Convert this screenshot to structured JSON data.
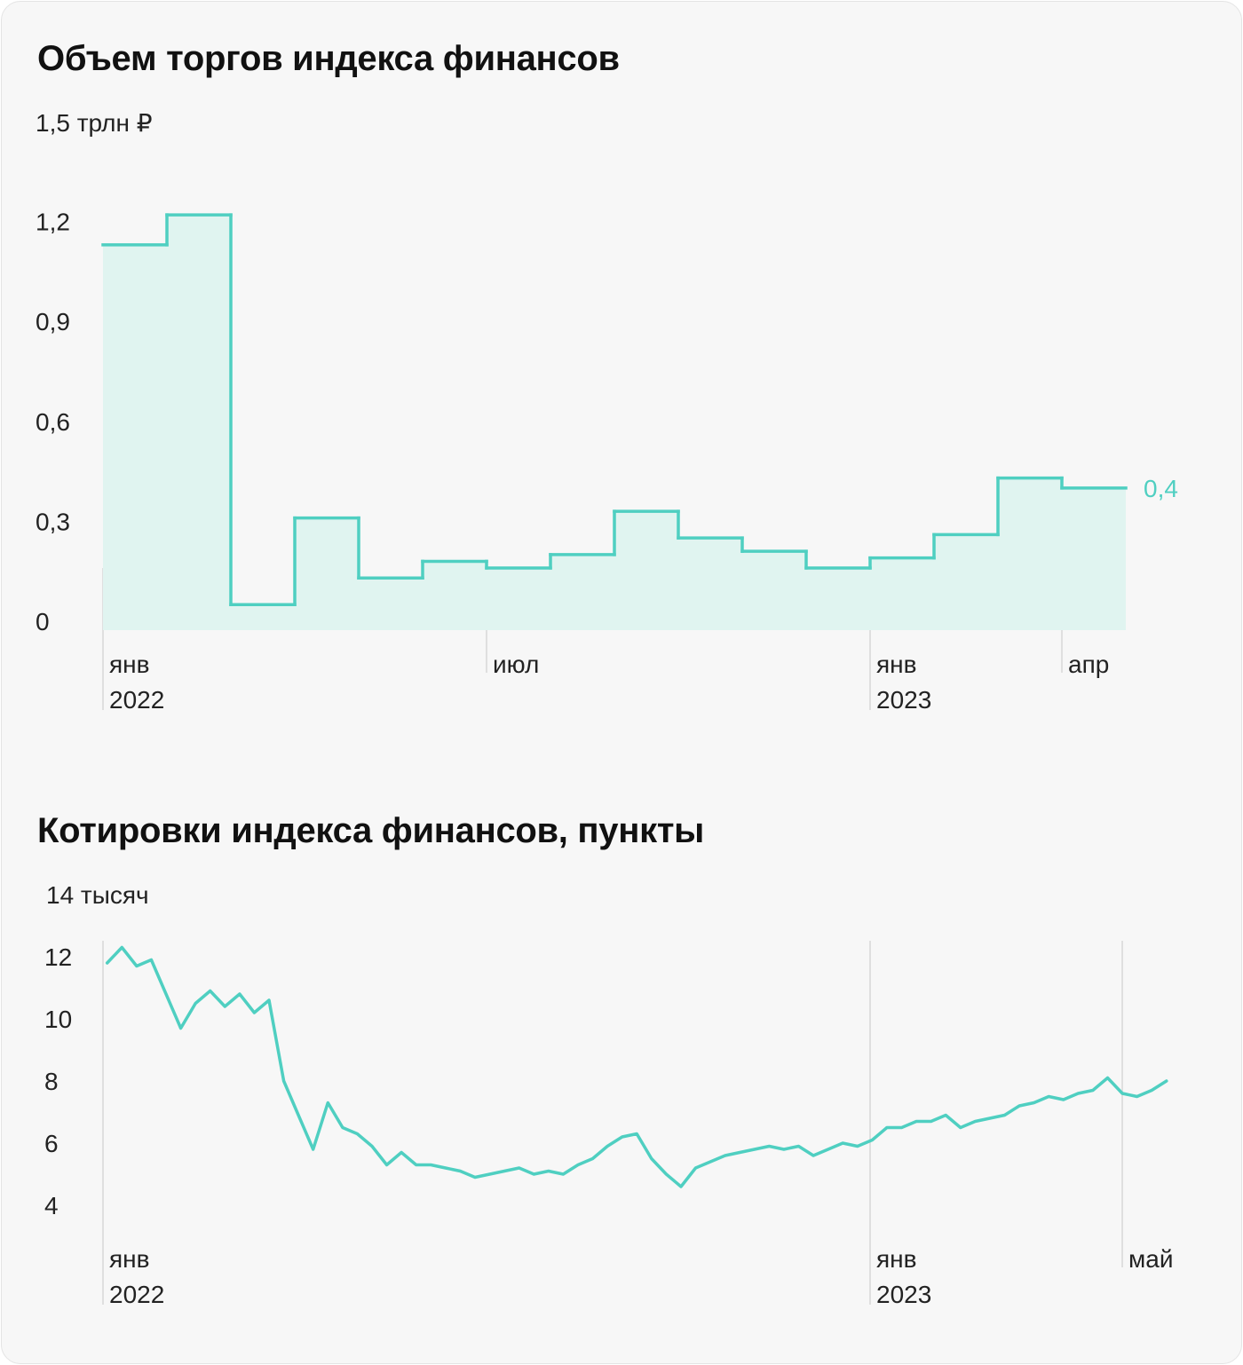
{
  "colors": {
    "accent": "#4fcfc1",
    "fill": "#e0f4f0",
    "text": "#222222",
    "grid": "#d7d7d7"
  },
  "chart_data": [
    {
      "type": "step-area",
      "title": "Объем торгов индекса финансов",
      "unit_label": "1,5 трлн ₽",
      "ylim": [
        0,
        1.5
      ],
      "y_ticks": [
        "1,2",
        "0,9",
        "0,6",
        "0,3",
        "0"
      ],
      "categories": [
        "янв 2022",
        "фев 2022",
        "мар 2022",
        "апр 2022",
        "май 2022",
        "июн 2022",
        "июл 2022",
        "авг 2022",
        "сен 2022",
        "окт 2022",
        "ноя 2022",
        "дек 2022",
        "янв 2023",
        "фев 2023",
        "мар 2023",
        "апр 2023"
      ],
      "values": [
        1.13,
        1.22,
        0.05,
        0.31,
        0.13,
        0.18,
        0.16,
        0.2,
        0.33,
        0.25,
        0.21,
        0.16,
        0.19,
        0.26,
        0.43,
        0.4
      ],
      "last_value_label": "0,4",
      "x_labels": [
        {
          "month": "янв",
          "year": "2022"
        },
        {
          "month": "июл",
          "year": ""
        },
        {
          "month": "янв",
          "year": "2023"
        },
        {
          "month": "апр",
          "year": ""
        }
      ]
    },
    {
      "type": "line",
      "title": "Котировки индекса финансов, пункты",
      "unit_label": "14 тысяч",
      "ylim": [
        3000,
        14000
      ],
      "y_ticks": [
        "12",
        "10",
        "8",
        "6",
        "4"
      ],
      "x_labels": [
        {
          "month": "янв",
          "year": "2022"
        },
        {
          "month": "янв",
          "year": "2023"
        },
        {
          "month": "май",
          "year": ""
        }
      ],
      "x": [
        "2022-01-03",
        "2022-01-10",
        "2022-01-17",
        "2022-01-24",
        "2022-01-31",
        "2022-02-07",
        "2022-02-14",
        "2022-02-21",
        "2022-02-28",
        "2022-03-07",
        "2022-03-14",
        "2022-03-21",
        "2022-03-28",
        "2022-04-04",
        "2022-04-11",
        "2022-04-18",
        "2022-04-25",
        "2022-05-02",
        "2022-05-09",
        "2022-05-16",
        "2022-05-23",
        "2022-05-30",
        "2022-06-06",
        "2022-06-13",
        "2022-06-20",
        "2022-06-27",
        "2022-07-04",
        "2022-07-11",
        "2022-07-18",
        "2022-07-25",
        "2022-08-01",
        "2022-08-08",
        "2022-08-15",
        "2022-08-22",
        "2022-08-29",
        "2022-09-05",
        "2022-09-12",
        "2022-09-19",
        "2022-09-26",
        "2022-10-03",
        "2022-10-10",
        "2022-10-17",
        "2022-10-24",
        "2022-10-31",
        "2022-11-07",
        "2022-11-14",
        "2022-11-21",
        "2022-11-28",
        "2022-12-05",
        "2022-12-12",
        "2022-12-19",
        "2022-12-26",
        "2023-01-02",
        "2023-01-09",
        "2023-01-16",
        "2023-01-23",
        "2023-01-30",
        "2023-02-06",
        "2023-02-13",
        "2023-02-20",
        "2023-02-27",
        "2023-03-06",
        "2023-03-13",
        "2023-03-20",
        "2023-03-27",
        "2023-04-03",
        "2023-04-10",
        "2023-04-17",
        "2023-04-24",
        "2023-05-01",
        "2023-05-08",
        "2023-05-15",
        "2023-05-22"
      ],
      "values": [
        11800,
        12300,
        11700,
        11900,
        10800,
        9700,
        10500,
        10900,
        10400,
        10800,
        10200,
        10600,
        8000,
        6900,
        5800,
        7300,
        6500,
        6300,
        5900,
        5300,
        5700,
        5300,
        5300,
        5200,
        5100,
        4900,
        5000,
        5100,
        5200,
        5000,
        5100,
        5000,
        5300,
        5500,
        5900,
        6200,
        6300,
        5500,
        5000,
        4600,
        5200,
        5400,
        5600,
        5700,
        5800,
        5900,
        5800,
        5900,
        5600,
        5800,
        6000,
        5900,
        6100,
        6500,
        6500,
        6700,
        6700,
        6900,
        6500,
        6700,
        6800,
        6900,
        7200,
        7300,
        7500,
        7400,
        7600,
        7700,
        8100,
        7600,
        7500,
        7700,
        8000
      ]
    }
  ]
}
